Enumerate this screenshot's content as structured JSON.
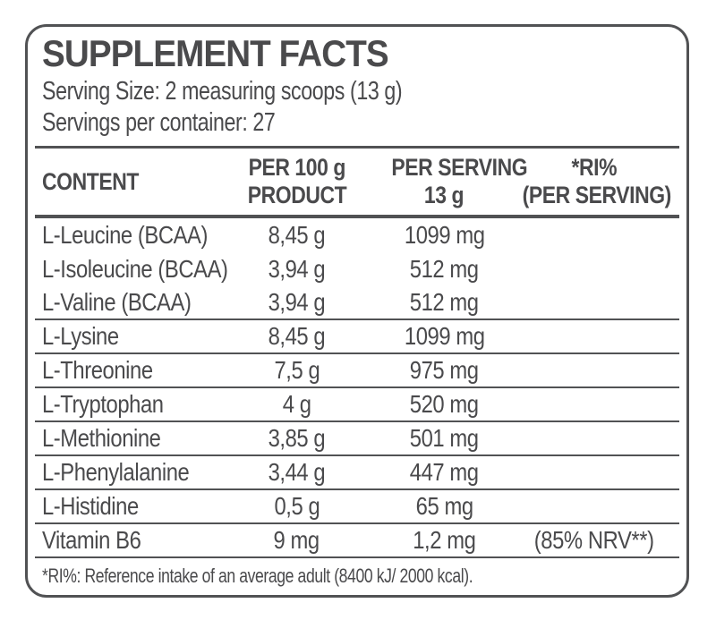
{
  "panel": {
    "title": "SUPPLEMENT FACTS",
    "serving_size": "Serving Size: 2 measuring scoops (13 g)",
    "servings_per_container": "Servings per container: 27",
    "footnote": "*RI%: Reference intake of an average adult (8400 kJ/ 2000 kcal)."
  },
  "table": {
    "columns": [
      {
        "line1": "CONTENT",
        "line2": ""
      },
      {
        "line1": "PER 100 g",
        "line2": "PRODUCT"
      },
      {
        "line1": "PER SERVING",
        "line2": "13 g"
      },
      {
        "line1": "*RI%",
        "line2": "(PER SERVING)"
      }
    ],
    "rows": [
      {
        "content": "L-Leucine (BCAA)",
        "per_100g": "8,45 g",
        "per_serving": "1099 mg",
        "ri_percent": ""
      },
      {
        "content": "L-Isoleucine (BCAA)",
        "per_100g": "3,94 g",
        "per_serving": "512 mg",
        "ri_percent": ""
      },
      {
        "content": "L-Valine (BCAA)",
        "per_100g": "3,94 g",
        "per_serving": "512 mg",
        "ri_percent": ""
      },
      {
        "content": "L-Lysine",
        "per_100g": "8,45 g",
        "per_serving": "1099 mg",
        "ri_percent": ""
      },
      {
        "content": "L-Threonine",
        "per_100g": "7,5 g",
        "per_serving": "975 mg",
        "ri_percent": ""
      },
      {
        "content": "L-Tryptophan",
        "per_100g": "4 g",
        "per_serving": "520 mg",
        "ri_percent": ""
      },
      {
        "content": "L-Methionine",
        "per_100g": "3,85 g",
        "per_serving": "501 mg",
        "ri_percent": ""
      },
      {
        "content": "L-Phenylalanine",
        "per_100g": "3,44 g",
        "per_serving": "447 mg",
        "ri_percent": ""
      },
      {
        "content": "L-Histidine",
        "per_100g": "0,5 g",
        "per_serving": "65 mg",
        "ri_percent": ""
      },
      {
        "content": "Vitamin B6",
        "per_100g": "9 mg",
        "per_serving": "1,2 mg",
        "ri_percent": "(85% NRV**)"
      }
    ]
  },
  "colors": {
    "text": "#4a4a4c",
    "line": "#515254",
    "background": "#ffffff"
  }
}
